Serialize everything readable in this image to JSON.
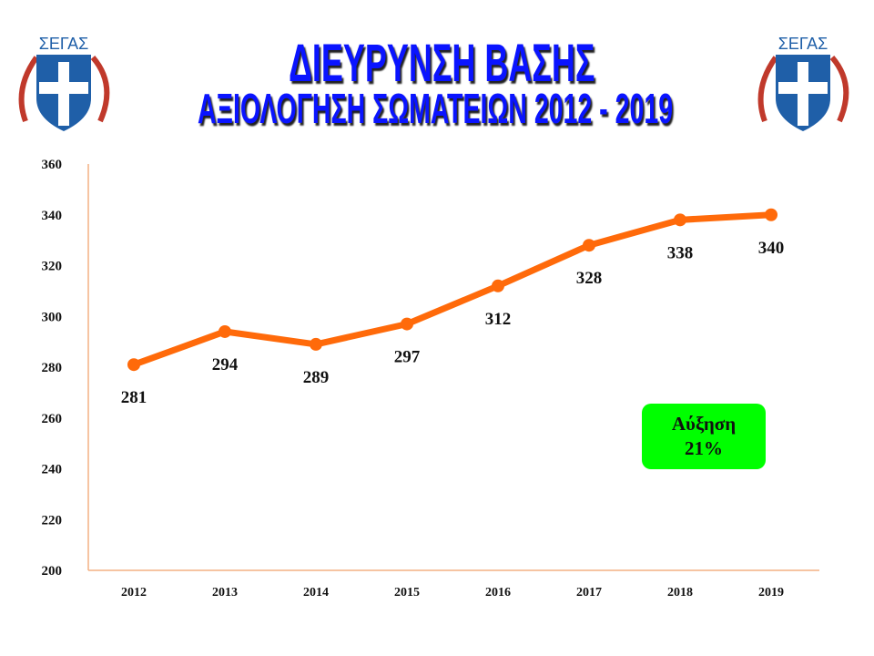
{
  "header": {
    "title_line1": "ΔΙΕΥΡΥΝΣΗ ΒΑΣΗΣ",
    "title_line2": "ΑΞΙΟΛΟΓΗΣΗ ΣΩΜΑΤΕΙΩΝ 2012 - 2019",
    "logo_text": "ΣΕΓΑΣ"
  },
  "badge": {
    "line1": "Αύξηση",
    "line2": "21%",
    "color": "#00ff00"
  },
  "chart_data": {
    "type": "line",
    "categories": [
      "2012",
      "2013",
      "2014",
      "2015",
      "2016",
      "2017",
      "2018",
      "2019"
    ],
    "values": [
      281,
      294,
      289,
      297,
      312,
      328,
      338,
      340
    ],
    "ylim": [
      200,
      360
    ],
    "yticks": [
      200,
      220,
      240,
      260,
      280,
      300,
      320,
      340,
      360
    ],
    "color": "#ff6a0a",
    "axis_color": "#f4b183",
    "grid": false,
    "data_labels": true
  }
}
